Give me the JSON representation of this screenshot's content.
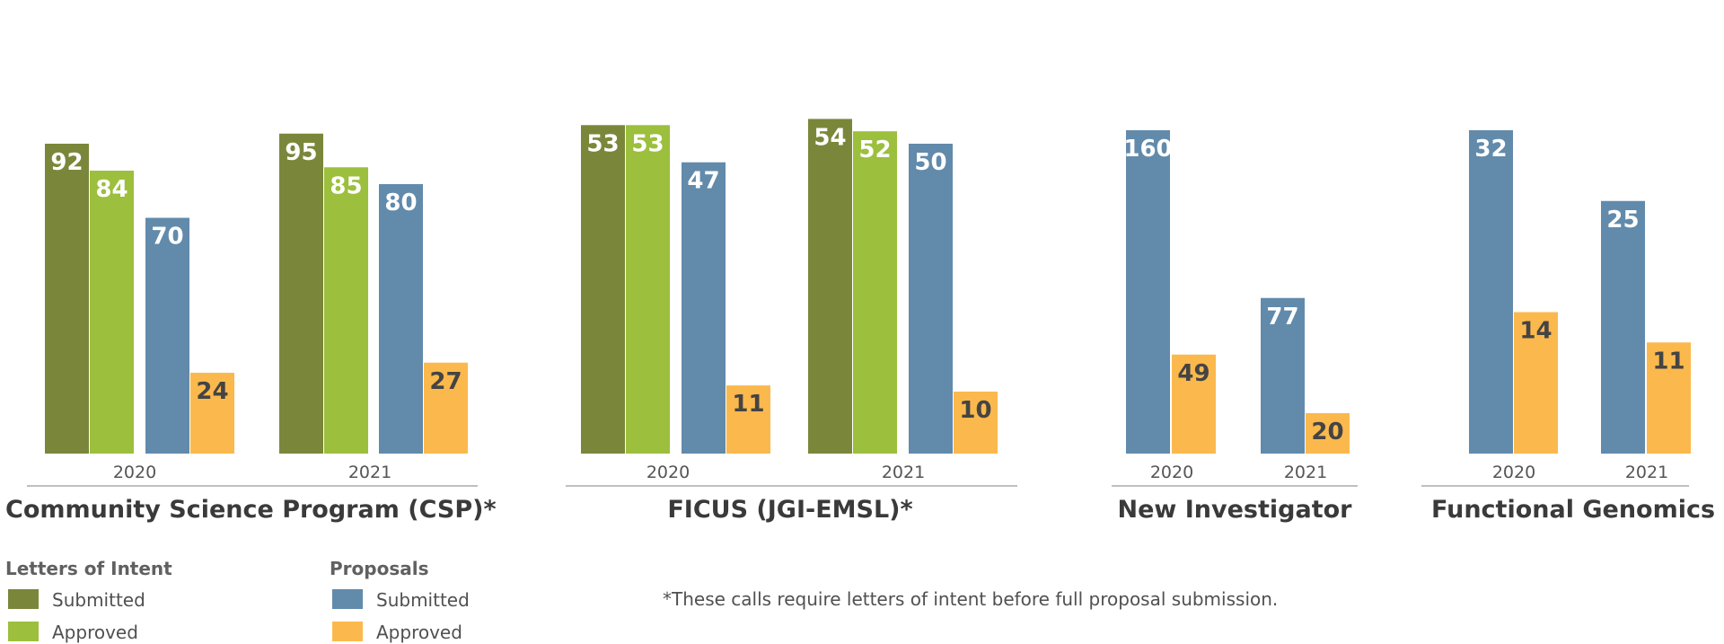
{
  "chart_data": {
    "type": "bar",
    "colors": {
      "loi_submitted": "#7a873a",
      "loi_approved": "#9cbf3d",
      "prop_submitted": "#628aab",
      "prop_approved": "#fbb94d",
      "label_light": "#ffffff",
      "label_dark": "#444444"
    },
    "series": [
      {
        "key": "loi_submitted",
        "name": "Submitted",
        "group": "Letters of Intent"
      },
      {
        "key": "loi_approved",
        "name": "Approved",
        "group": "Letters of Intent"
      },
      {
        "key": "prop_submitted",
        "name": "Submitted",
        "group": "Proposals"
      },
      {
        "key": "prop_approved",
        "name": "Approved",
        "group": "Proposals"
      }
    ],
    "groups": [
      {
        "title": "Community Science Program (CSP)*",
        "years": [
          {
            "year": "2020",
            "values": {
              "loi_submitted": 92,
              "loi_approved": 84,
              "prop_submitted": 70,
              "prop_approved": 24
            }
          },
          {
            "year": "2021",
            "values": {
              "loi_submitted": 95,
              "loi_approved": 85,
              "prop_submitted": 80,
              "prop_approved": 27
            }
          }
        ]
      },
      {
        "title": "FICUS (JGI-EMSL)*",
        "years": [
          {
            "year": "2020",
            "values": {
              "loi_submitted": 53,
              "loi_approved": 53,
              "prop_submitted": 47,
              "prop_approved": 11
            }
          },
          {
            "year": "2021",
            "values": {
              "loi_submitted": 54,
              "loi_approved": 52,
              "prop_submitted": 50,
              "prop_approved": 10
            }
          }
        ]
      },
      {
        "title": "New Investigator",
        "years": [
          {
            "year": "2020",
            "values": {
              "prop_submitted": 160,
              "prop_approved": 49
            }
          },
          {
            "year": "2021",
            "values": {
              "prop_submitted": 77,
              "prop_approved": 20
            }
          }
        ]
      },
      {
        "title": "Functional Genomics",
        "years": [
          {
            "year": "2020",
            "values": {
              "prop_submitted": 32,
              "prop_approved": 14
            }
          },
          {
            "year": "2021",
            "values": {
              "prop_submitted": 25,
              "prop_approved": 11
            }
          }
        ]
      }
    ],
    "legend": {
      "groups": [
        {
          "title": "Letters of Intent",
          "items": [
            {
              "key": "loi_submitted",
              "label": "Submitted"
            },
            {
              "key": "loi_approved",
              "label": "Approved"
            }
          ]
        },
        {
          "title": "Proposals",
          "items": [
            {
              "key": "prop_submitted",
              "label": "Submitted"
            },
            {
              "key": "prop_approved",
              "label": "Approved"
            }
          ]
        }
      ],
      "placement": "bottom-left"
    },
    "footnote": "*These calls require letters of intent before full proposal submission.",
    "xlabel": "",
    "ylabel": "",
    "grid": false
  }
}
